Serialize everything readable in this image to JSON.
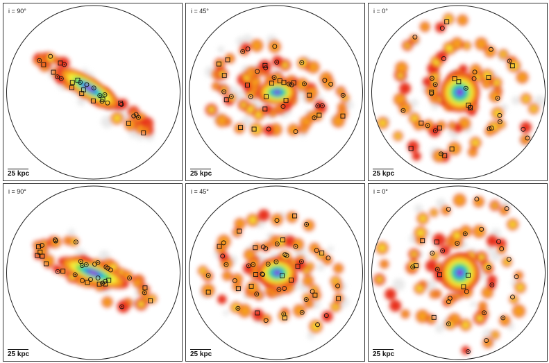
{
  "panels": [
    {
      "inclination_label": "i = 90°",
      "scale_label": "25 kpc"
    },
    {
      "inclination_label": "i = 45°",
      "scale_label": "25 kpc"
    },
    {
      "inclination_label": "i =  0°",
      "scale_label": "25 kpc"
    },
    {
      "inclination_label": "i = 90°",
      "scale_label": "25 kpc"
    },
    {
      "inclination_label": "i = 45°",
      "scale_label": "25 kpc"
    },
    {
      "inclination_label": "i =  0°",
      "scale_label": "25 kpc"
    }
  ],
  "colors": {
    "haze": "#d8d8d8",
    "red": "#e8321e",
    "orange": "#f7a21b",
    "yellow": "#f5f23a",
    "green": "#3fd65a",
    "cyan": "#2ec8e8",
    "blue": "#2c4bd8",
    "violet": "#a23ad9",
    "marker": "#111111"
  }
}
